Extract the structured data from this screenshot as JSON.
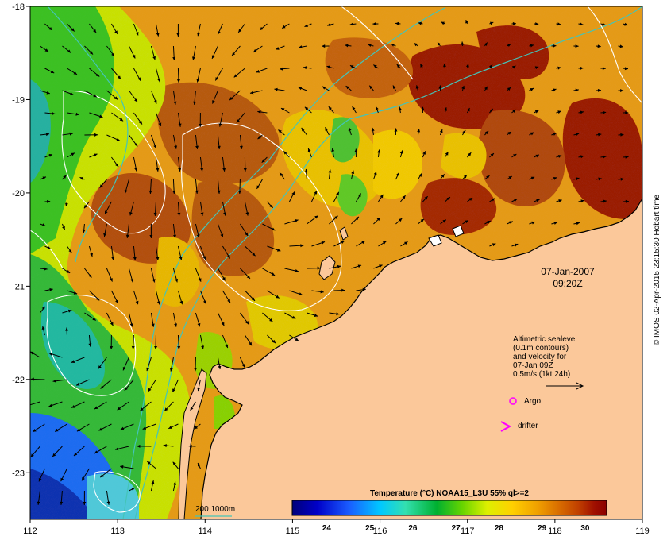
{
  "map": {
    "lon_range": [
      112,
      119
    ],
    "lat_range": [
      -23.5,
      -18
    ],
    "lon_ticks": [
      "112",
      "113",
      "114",
      "115",
      "116",
      "117",
      "118",
      "119"
    ],
    "lat_ticks": [
      "-18",
      "-19",
      "-20",
      "-21",
      "-22",
      "-23"
    ],
    "land_color": "#fbc89a",
    "contour_color": "#ffffff",
    "bathymetry_color": "#44c4b8"
  },
  "labels": {
    "date": "07-Jan-2007",
    "time": "09:20Z",
    "legend_line1": "Altimetric sealevel",
    "legend_line2": "(0.1m contours)",
    "legend_line3": "and velocity for",
    "legend_line4": "07-Jan 09Z",
    "legend_line5": "0.5m/s (1kt 24h)",
    "argo": "Argo",
    "drifter": "drifter",
    "depth_legend": "200  1000m",
    "colorbar_title": "Temperature (°C) NOAA15_L3U 55% ql>=2",
    "copyright": "© IMOS 02-Apr-2015 23:15:30 Hobart time"
  },
  "colorbar": {
    "ticks": [
      "24",
      "25",
      "26",
      "27",
      "28",
      "29",
      "30"
    ],
    "range": [
      23.2,
      30.5
    ],
    "stops": [
      "#00007a",
      "#0000c8",
      "#1a5cff",
      "#00c8ff",
      "#33e0b0",
      "#00b030",
      "#66d400",
      "#ddf000",
      "#ffd000",
      "#f0a000",
      "#d86c00",
      "#c04000",
      "#a01000",
      "#8a0000"
    ]
  },
  "symbols": {
    "argo_color": "#ff00ff",
    "drifter_color": "#ff00ff"
  }
}
